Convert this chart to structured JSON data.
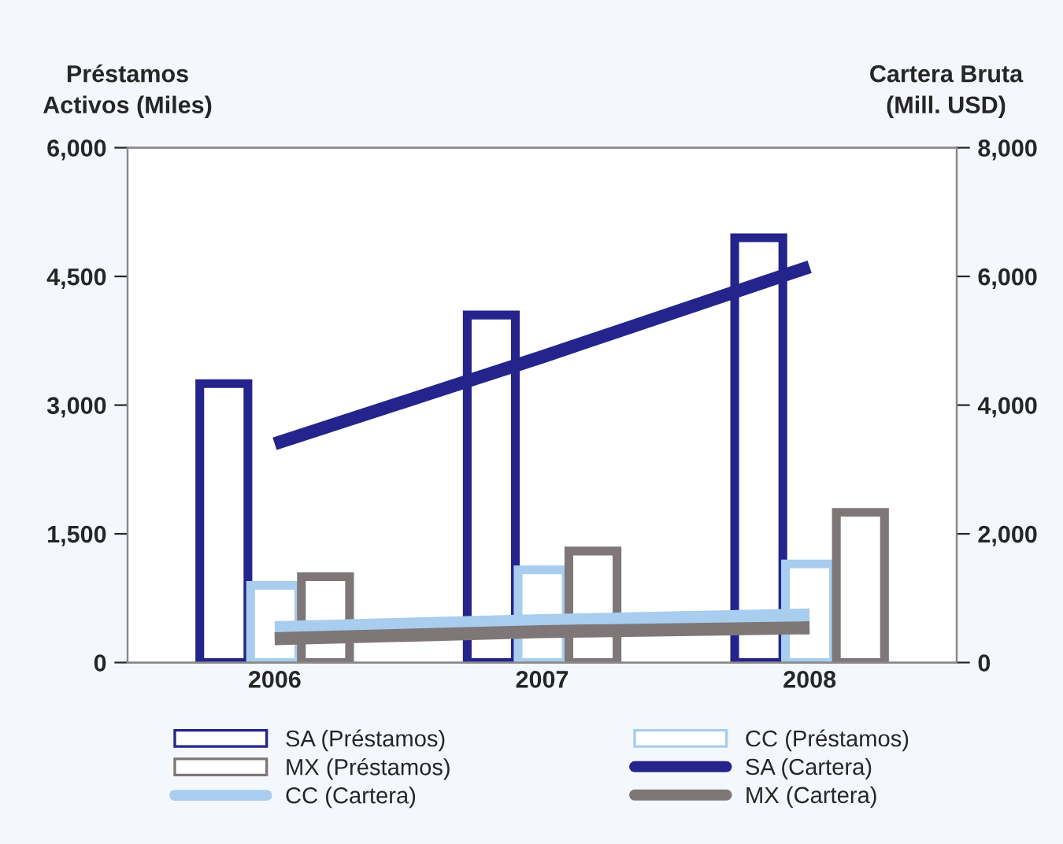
{
  "chart_data": {
    "type": "bar",
    "ylabel": "Préstamos\nActivos (Miles)",
    "y2label": "Cartera Bruta\n(Mill. USD)",
    "categories": [
      "2006",
      "2007",
      "2008"
    ],
    "series": [
      {
        "name": "SA (Préstamos)",
        "color": "#24248c",
        "values": [
          3250,
          4050,
          4950
        ]
      },
      {
        "name": "CC (Préstamos)",
        "color": "#a8cdef",
        "values": [
          900,
          1080,
          1150
        ]
      },
      {
        "name": "MX (Préstamos)",
        "color": "#7f7777",
        "values": [
          1000,
          1300,
          1750
        ]
      },
      {
        "name": "SA (Cartera)",
        "type": "line",
        "axis": "y2",
        "color": "#24248c",
        "values": [
          3400,
          4750,
          6150
        ]
      },
      {
        "name": "CC (Cartera)",
        "type": "line",
        "axis": "y2",
        "color": "#a8cdef",
        "values": [
          540,
          650,
          740
        ]
      },
      {
        "name": "MX (Cartera)",
        "type": "line",
        "axis": "y2",
        "color": "#7f7777",
        "values": [
          370,
          480,
          540
        ]
      }
    ],
    "ylim": [
      0,
      6000
    ],
    "yticks": [
      0,
      {
        "value": 1500,
        "label": "1,500"
      },
      {
        "value": 3000,
        "label": "3,000"
      },
      {
        "value": 4500,
        "label": "4,500"
      },
      {
        "value": 6000,
        "label": "6,000"
      }
    ],
    "y2lim": [
      0,
      8000
    ],
    "y2ticks": [
      0,
      {
        "value": 2000,
        "label": "2,000"
      },
      {
        "value": 4000,
        "label": "4,000"
      },
      {
        "value": 6000,
        "label": "6,000"
      },
      {
        "value": 8000,
        "label": "8,000"
      }
    ],
    "legend": "bottom",
    "grid": false
  }
}
